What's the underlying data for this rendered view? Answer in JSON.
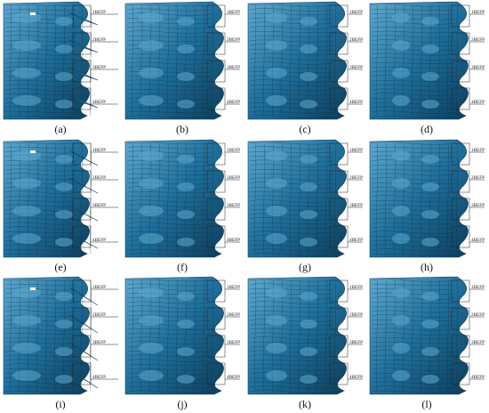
{
  "figure": {
    "panel_captions": [
      "(a)",
      "(b)",
      "(c)",
      "(d)",
      "(e)",
      "(f)",
      "(g)",
      "(h)",
      "(i)",
      "(j)",
      "(k)",
      "(l)"
    ],
    "callout_labels": [
      "1BEFP",
      "2BEFP",
      "3BEFP",
      "4BEFP"
    ],
    "colors": {
      "surface": "#1f6f9b",
      "surface_dark": "#0d3d5a",
      "surface_light": "#5fa9cf",
      "line": "#222222",
      "background": "#ffffff"
    }
  }
}
